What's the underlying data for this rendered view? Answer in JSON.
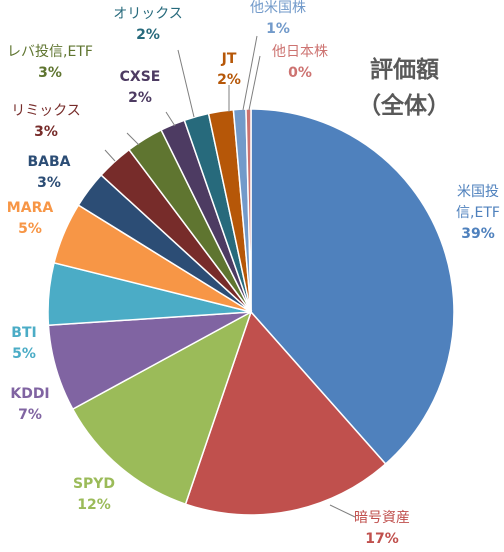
{
  "chart_data": {
    "type": "pie",
    "title": "評価額",
    "subtitle": "（全体）",
    "slices": [
      {
        "name": "米国投信,ETF",
        "label_lines": [
          "米国投",
          "信,ETF"
        ],
        "percent_label": "39%",
        "value": 39,
        "color": "#4F81BD",
        "label_color": "#4F81BD"
      },
      {
        "name": "暗号資産",
        "label_lines": [
          "暗号資産"
        ],
        "percent_label": "17%",
        "value": 17,
        "color": "#C0504D",
        "label_color": "#C0504D"
      },
      {
        "name": "SPYD",
        "label_lines": [
          "SPYD"
        ],
        "percent_label": "12%",
        "value": 12,
        "color": "#9BBB59",
        "label_color": "#9BBB59"
      },
      {
        "name": "KDDI",
        "label_lines": [
          "KDDI"
        ],
        "percent_label": "7%",
        "value": 7,
        "color": "#8064A2",
        "label_color": "#8064A2"
      },
      {
        "name": "BTI",
        "label_lines": [
          "BTI"
        ],
        "percent_label": "5%",
        "value": 5,
        "color": "#4BACC6",
        "label_color": "#4BACC6"
      },
      {
        "name": "MARA",
        "label_lines": [
          "MARA"
        ],
        "percent_label": "5%",
        "value": 5,
        "color": "#F79646",
        "label_color": "#F79646"
      },
      {
        "name": "BABA",
        "label_lines": [
          "BABA"
        ],
        "percent_label": "3%",
        "value": 3,
        "color": "#2C4D75",
        "label_color": "#2C4D75"
      },
      {
        "name": "リミックス",
        "label_lines": [
          "リミックス"
        ],
        "percent_label": "3%",
        "value": 3,
        "color": "#772C2A",
        "label_color": "#772C2A"
      },
      {
        "name": "レバ投信,ETF",
        "label_lines": [
          "レバ投信,ETF"
        ],
        "percent_label": "3%",
        "value": 3,
        "color": "#5F7530",
        "label_color": "#5F7530"
      },
      {
        "name": "CXSE",
        "label_lines": [
          "CXSE"
        ],
        "percent_label": "2%",
        "value": 2,
        "color": "#4D3B62",
        "label_color": "#4D3B62"
      },
      {
        "name": "オリックス",
        "label_lines": [
          "オリックス"
        ],
        "percent_label": "2%",
        "value": 2,
        "color": "#276A7C",
        "label_color": "#276A7C"
      },
      {
        "name": "JT",
        "label_lines": [
          "JT"
        ],
        "percent_label": "2%",
        "value": 2,
        "color": "#B65708",
        "label_color": "#B65708"
      },
      {
        "name": "他米国株",
        "label_lines": [
          "他米国株"
        ],
        "percent_label": "1%",
        "value": 1,
        "color": "#729ACA",
        "label_color": "#729ACA"
      },
      {
        "name": "他日本株",
        "label_lines": [
          "他日本株"
        ],
        "percent_label": "0%",
        "value": 0.4,
        "color": "#CD7371",
        "label_color": "#CD7371"
      }
    ]
  }
}
